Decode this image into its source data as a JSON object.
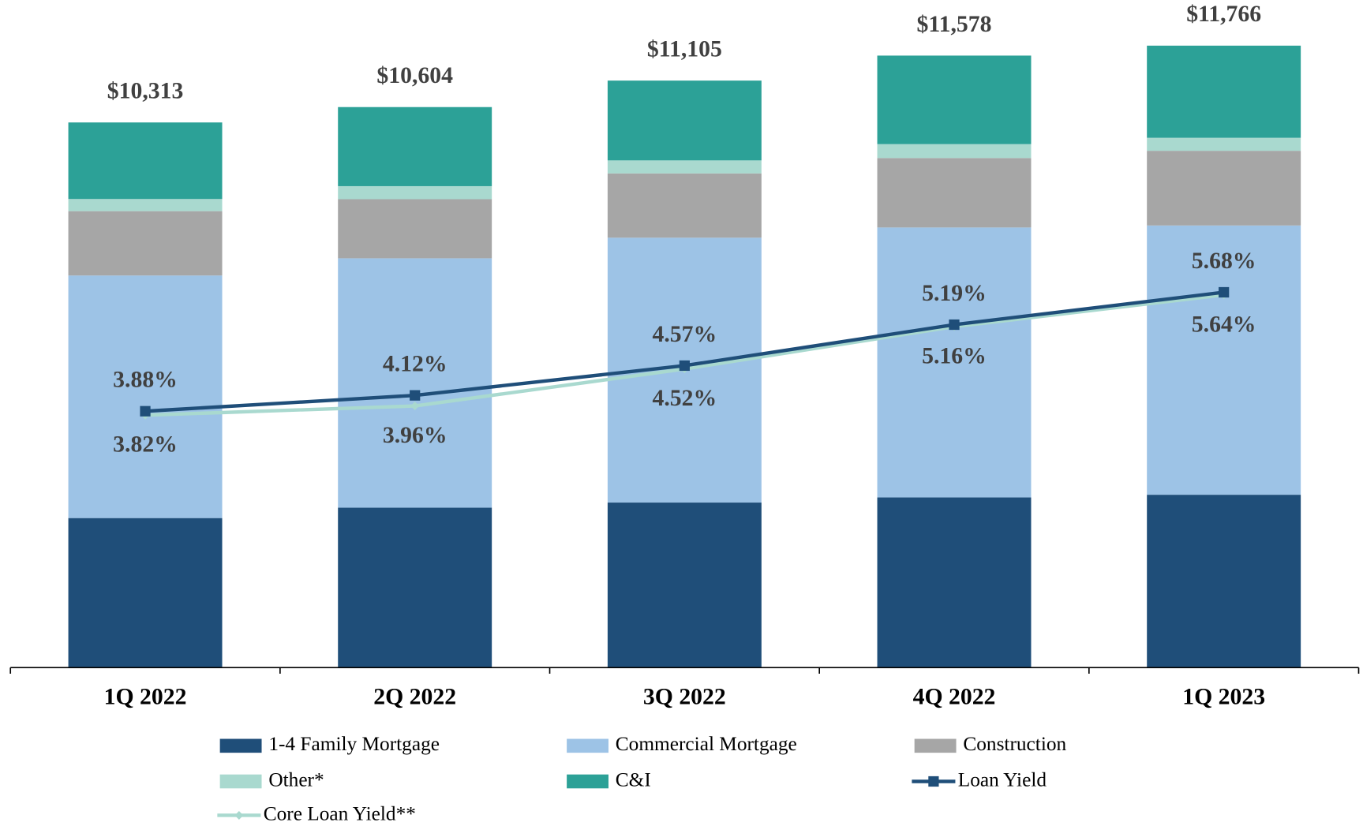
{
  "chart_data": {
    "type": "bar",
    "stacked": true,
    "categories": [
      "1Q 2022",
      "2Q 2022",
      "3Q 2022",
      "4Q 2022",
      "1Q 2023"
    ],
    "ylim": [
      0,
      12000
    ],
    "y2lim": [
      0,
      9.6
    ],
    "legend": "bottom",
    "series": [
      {
        "name": "1-4 Family Mortgage",
        "type": "bar",
        "color": "#1f4e79",
        "values": [
          2829,
          3025,
          3122,
          3219,
          3270
        ]
      },
      {
        "name": "Commercial Mortgage",
        "type": "bar",
        "color": "#9dc3e6",
        "values": [
          4589,
          4718,
          5011,
          5107,
          5094
        ]
      },
      {
        "name": "Construction",
        "type": "bar",
        "color": "#a6a6a6",
        "values": [
          1217,
          1118,
          1216,
          1314,
          1413
        ]
      },
      {
        "name": "Other*",
        "type": "bar",
        "color": "#a9d9cf",
        "values": [
          230,
          247,
          246,
          263,
          246
        ]
      },
      {
        "name": "C&I",
        "type": "bar",
        "color": "#2ca197",
        "values": [
          1448,
          1496,
          1510,
          1675,
          1743
        ]
      },
      {
        "name": "Loan Yield",
        "type": "line",
        "axis": "y2",
        "color": "#1f4e79",
        "marker": "square",
        "label_side": "above",
        "values": [
          3.88,
          4.12,
          4.57,
          5.19,
          5.68
        ],
        "value_labels": [
          "3.88%",
          "4.12%",
          "4.57%",
          "5.19%",
          "5.68%"
        ]
      },
      {
        "name": "Core Loan Yield**",
        "type": "line",
        "axis": "y2",
        "color": "#a9d9cf",
        "marker": "diamond",
        "label_side": "below",
        "values": [
          3.82,
          3.96,
          4.52,
          5.16,
          5.64
        ],
        "value_labels": [
          "3.82%",
          "3.96%",
          "4.52%",
          "5.16%",
          "5.64%"
        ]
      }
    ],
    "totals": [
      10313,
      10604,
      11105,
      11578,
      11766
    ],
    "total_labels": [
      "$10,313",
      "$10,604",
      "$11,105",
      "$11,578",
      "$11,766"
    ]
  }
}
